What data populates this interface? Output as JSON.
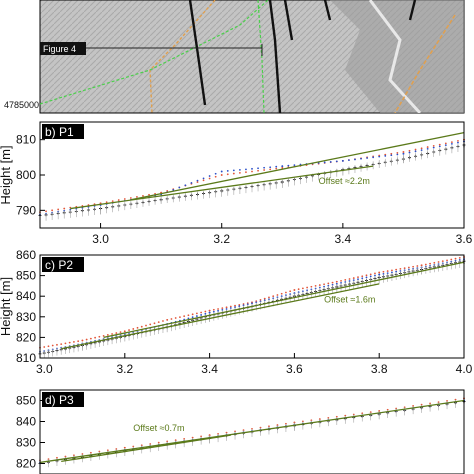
{
  "map": {
    "figure_label": "Figure 4",
    "coord_label": "4785000",
    "colors": {
      "relief": "#b9b9b9",
      "green_trace": "#4bd04b",
      "orange_trace": "#e0a050",
      "fault": "#111111",
      "arrow_box": "#222222"
    }
  },
  "chart_data": [
    {
      "type": "scatter",
      "panel_label": "b) P1",
      "ylabel": "Height [m]",
      "xlim": [
        2.9,
        3.6
      ],
      "ylim": [
        785,
        815
      ],
      "xticks": [
        3.0,
        3.2,
        3.4,
        3.6
      ],
      "xtick_labels": [
        "3.0",
        "3.2",
        "3.4",
        "3.6"
      ],
      "yticks": [
        790,
        800,
        810
      ],
      "ytick_labels": [
        "790",
        "800",
        "810"
      ],
      "x_tick_labels_shown": true,
      "annotation": "Offset ≈2.2m",
      "annotation_at": {
        "x": 3.36,
        "y": 797.5
      },
      "series": [
        {
          "color": "#111111",
          "style": "plus",
          "values": [
            [
              2.9,
              788.5
            ],
            [
              3.0,
              790.5
            ],
            [
              3.1,
              793.0
            ],
            [
              3.2,
              795.5
            ],
            [
              3.3,
              798.0
            ],
            [
              3.4,
              801.5
            ],
            [
              3.5,
              804.5
            ],
            [
              3.6,
              808.5
            ]
          ]
        },
        {
          "color": "#e2563a",
          "style": "dot",
          "values": [
            [
              2.9,
              789.5
            ],
            [
              3.0,
              792.0
            ],
            [
              3.1,
              795.0
            ],
            [
              3.2,
              800.0
            ],
            [
              3.3,
              802.0
            ],
            [
              3.4,
              804.0
            ],
            [
              3.5,
              806.5
            ],
            [
              3.6,
              810.0
            ]
          ]
        },
        {
          "color": "#2a4fc9",
          "style": "dot",
          "values": [
            [
              2.9,
              788.8
            ],
            [
              3.0,
              791.5
            ],
            [
              3.1,
              794.5
            ],
            [
              3.2,
              801.0
            ],
            [
              3.3,
              802.5
            ],
            [
              3.4,
              804.0
            ],
            [
              3.5,
              806.0
            ],
            [
              3.6,
              809.5
            ]
          ]
        },
        {
          "color": "#a3a3a3",
          "style": "bar",
          "values": [
            [
              2.9,
              788.0
            ],
            [
              3.0,
              790.0
            ],
            [
              3.1,
              793.0
            ],
            [
              3.2,
              795.0
            ],
            [
              3.3,
              797.5
            ],
            [
              3.4,
              801.0
            ],
            [
              3.5,
              804.5
            ],
            [
              3.6,
              808.0
            ]
          ]
        }
      ],
      "fit_lines": [
        {
          "color": "#5b7a1a",
          "from": [
            3.05,
            793.0
          ],
          "to": [
            3.6,
            812.0
          ]
        },
        {
          "color": "#5b7a1a",
          "from": [
            2.95,
            790.5
          ],
          "to": [
            3.45,
            802.5
          ]
        }
      ]
    },
    {
      "type": "scatter",
      "panel_label": "c) P2",
      "ylabel": "Height [m]",
      "xlim": [
        3.0,
        4.0
      ],
      "ylim": [
        810,
        860
      ],
      "xticks": [
        3.0,
        3.2,
        3.4,
        3.6,
        3.8,
        4.0
      ],
      "xtick_labels": [
        "3.0",
        "3.2",
        "3.4",
        "3.6",
        "3.8",
        "4.0"
      ],
      "yticks": [
        810,
        820,
        830,
        840,
        850,
        860
      ],
      "ytick_labels": [
        "810",
        "820",
        "830",
        "840",
        "850",
        "860"
      ],
      "x_tick_labels_shown": true,
      "annotation": "Offset ≈1.6m",
      "annotation_at": {
        "x": 3.67,
        "y": 837
      },
      "series": [
        {
          "color": "#111111",
          "style": "plus",
          "values": [
            [
              3.0,
              812.0
            ],
            [
              3.1,
              816.0
            ],
            [
              3.2,
              820.5
            ],
            [
              3.3,
              825.0
            ],
            [
              3.4,
              830.5
            ],
            [
              3.5,
              835.0
            ],
            [
              3.6,
              840.0
            ],
            [
              3.7,
              844.5
            ],
            [
              3.8,
              849.0
            ],
            [
              3.9,
              853.0
            ],
            [
              4.0,
              857.0
            ]
          ]
        },
        {
          "color": "#e2563a",
          "style": "dot",
          "values": [
            [
              3.0,
              815.0
            ],
            [
              3.1,
              818.5
            ],
            [
              3.2,
              823.0
            ],
            [
              3.3,
              828.5
            ],
            [
              3.4,
              833.0
            ],
            [
              3.5,
              837.0
            ],
            [
              3.6,
              843.0
            ],
            [
              3.7,
              847.0
            ],
            [
              3.8,
              851.5
            ],
            [
              3.9,
              855.0
            ],
            [
              4.0,
              859.0
            ]
          ]
        },
        {
          "color": "#2a4fc9",
          "style": "dot",
          "values": [
            [
              3.0,
              813.0
            ],
            [
              3.1,
              817.0
            ],
            [
              3.2,
              821.5
            ],
            [
              3.3,
              826.5
            ],
            [
              3.4,
              832.0
            ],
            [
              3.5,
              836.5
            ],
            [
              3.6,
              841.5
            ],
            [
              3.7,
              846.0
            ],
            [
              3.8,
              850.5
            ],
            [
              3.9,
              854.0
            ],
            [
              4.0,
              858.0
            ]
          ]
        },
        {
          "color": "#a3a3a3",
          "style": "bar",
          "values": [
            [
              3.0,
              811.5
            ],
            [
              3.1,
              815.5
            ],
            [
              3.2,
              820.0
            ],
            [
              3.3,
              824.5
            ],
            [
              3.4,
              829.5
            ],
            [
              3.5,
              834.5
            ],
            [
              3.6,
              839.5
            ],
            [
              3.7,
              844.0
            ],
            [
              3.8,
              848.0
            ],
            [
              3.9,
              852.5
            ],
            [
              4.0,
              856.0
            ]
          ]
        }
      ],
      "fit_lines": [
        {
          "color": "#5b7a1a",
          "from": [
            3.15,
            820.0
          ],
          "to": [
            4.0,
            856.5
          ]
        },
        {
          "color": "#5b7a1a",
          "from": [
            3.05,
            814.5
          ],
          "to": [
            3.8,
            846.0
          ]
        }
      ]
    },
    {
      "type": "scatter",
      "panel_label": "d) P3",
      "ylabel": "",
      "xlim": [
        3.0,
        4.0
      ],
      "ylim": [
        815,
        855
      ],
      "xticks": [],
      "xtick_labels": [],
      "yticks": [
        820,
        830,
        840,
        850
      ],
      "ytick_labels": [
        "820",
        "830",
        "840",
        "850"
      ],
      "x_tick_labels_shown": false,
      "annotation": "Offset ≈0.7m",
      "annotation_at": {
        "x": 3.22,
        "y": 835.5
      },
      "series": [
        {
          "color": "#111111",
          "style": "plus",
          "values": [
            [
              3.0,
              820.0
            ],
            [
              3.2,
              826.0
            ],
            [
              3.4,
              832.0
            ],
            [
              3.6,
              838.0
            ],
            [
              3.8,
              843.5
            ],
            [
              4.0,
              849.5
            ]
          ]
        },
        {
          "color": "#e2563a",
          "style": "dot",
          "values": [
            [
              3.0,
              821.5
            ],
            [
              3.2,
              827.5
            ],
            [
              3.4,
              833.5
            ],
            [
              3.6,
              839.5
            ],
            [
              3.8,
              845.0
            ],
            [
              4.0,
              851.0
            ]
          ]
        },
        {
          "color": "#2a4fc9",
          "style": "dot",
          "values": [
            [
              3.0,
              820.5
            ],
            [
              3.2,
              826.5
            ],
            [
              3.4,
              832.5
            ],
            [
              3.6,
              838.5
            ],
            [
              3.8,
              844.0
            ],
            [
              4.0,
              850.0
            ]
          ]
        },
        {
          "color": "#a3a3a3",
          "style": "bar",
          "values": [
            [
              3.0,
              819.5
            ],
            [
              3.2,
              825.5
            ],
            [
              3.4,
              831.5
            ],
            [
              3.6,
              837.5
            ],
            [
              3.8,
              843.0
            ],
            [
              4.0,
              849.0
            ]
          ]
        }
      ],
      "fit_lines": [
        {
          "color": "#5b7a1a",
          "from": [
            3.0,
            820.5
          ],
          "to": [
            4.0,
            850.0
          ]
        },
        {
          "color": "#5b7a1a",
          "from": [
            3.05,
            821.0
          ],
          "to": [
            3.45,
            833.5
          ]
        }
      ]
    }
  ]
}
